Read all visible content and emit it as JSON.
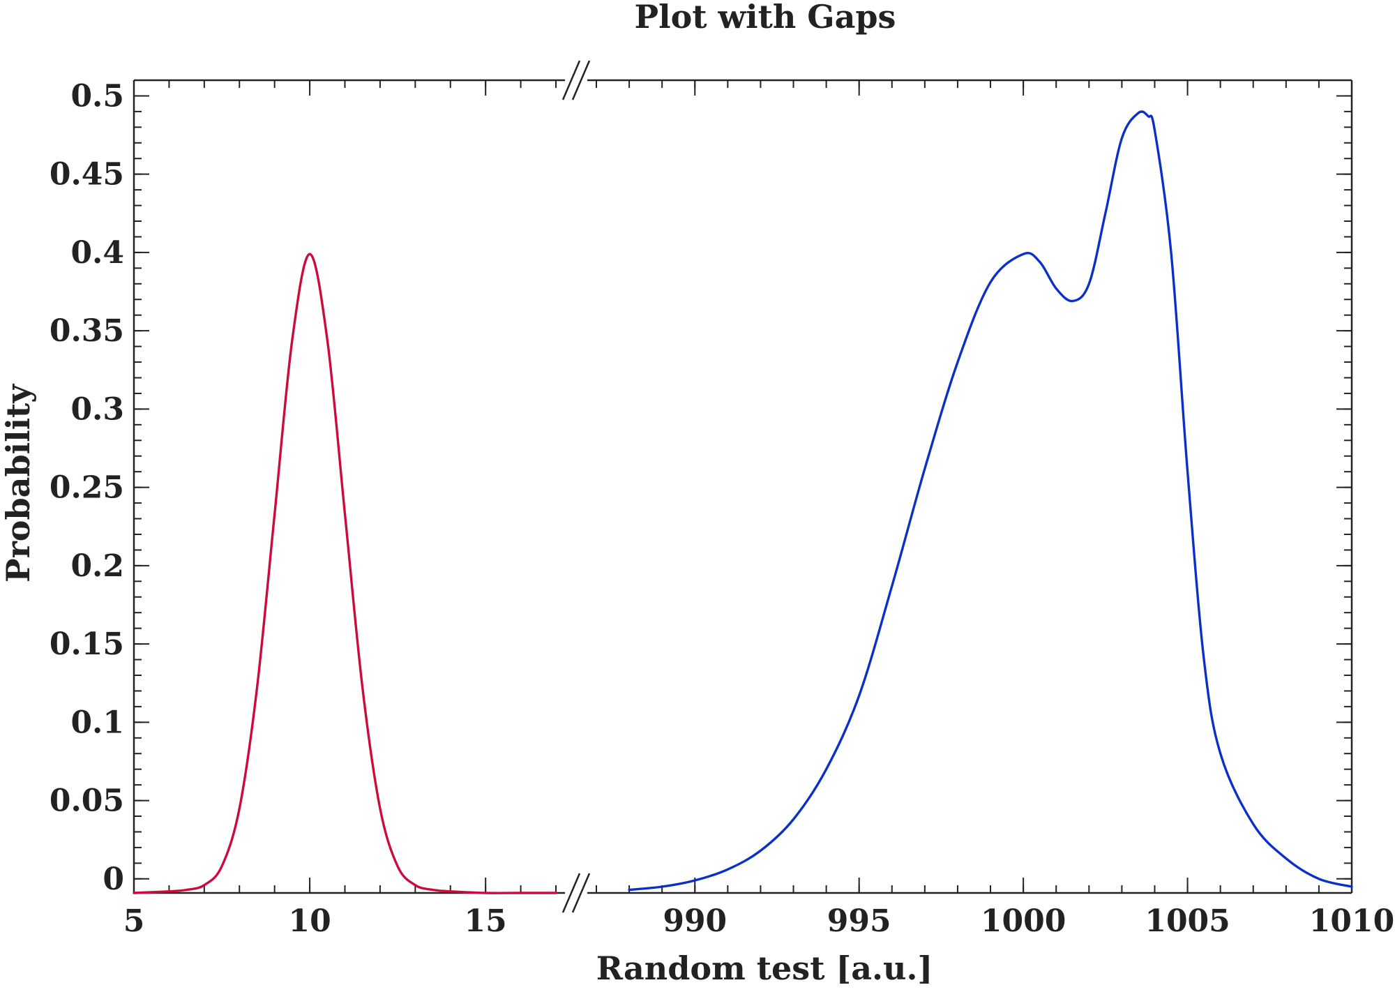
{
  "chart_data": {
    "type": "line",
    "title": "Plot with Gaps",
    "xlabel": "Random test [a.u.]",
    "ylabel": "Probability",
    "ylim": [
      -0.009,
      0.51
    ],
    "y_ticks": [
      {
        "value": 0,
        "label": "0"
      },
      {
        "value": 0.05,
        "label": "0.05"
      },
      {
        "value": 0.1,
        "label": "0.1"
      },
      {
        "value": 0.15,
        "label": "0.15"
      },
      {
        "value": 0.2,
        "label": "0.2"
      },
      {
        "value": 0.25,
        "label": "0.25"
      },
      {
        "value": 0.3,
        "label": "0.3"
      },
      {
        "value": 0.35,
        "label": "0.35"
      },
      {
        "value": 0.4,
        "label": "0.4"
      },
      {
        "value": 0.45,
        "label": "0.45"
      },
      {
        "value": 0.5,
        "label": "0.5"
      }
    ],
    "x_segments": [
      {
        "range": [
          5,
          17
        ],
        "ticks": [
          {
            "value": 5,
            "label": "5"
          },
          {
            "value": 10,
            "label": "10"
          },
          {
            "value": 15,
            "label": "15"
          }
        ]
      },
      {
        "range": [
          987,
          1010
        ],
        "ticks": [
          {
            "value": 990,
            "label": "990"
          },
          {
            "value": 995,
            "label": "995"
          },
          {
            "value": 1000,
            "label": "1000"
          },
          {
            "value": 1005,
            "label": "1005"
          },
          {
            "value": 1010,
            "label": "1010"
          }
        ]
      }
    ],
    "axis_break": "//",
    "grid": false,
    "series": [
      {
        "color": "#cc0a3c",
        "segment": 0,
        "x": [
          5,
          6,
          6.5,
          7,
          7.5,
          8,
          8.5,
          9,
          9.5,
          10,
          10.5,
          11,
          11.5,
          12,
          12.5,
          13,
          13.5,
          14,
          15,
          16,
          17
        ],
        "y": [
          -0.009,
          -0.008,
          -0.007,
          -0.004,
          0.008,
          0.045,
          0.122,
          0.233,
          0.344,
          0.399,
          0.344,
          0.233,
          0.122,
          0.045,
          0.008,
          -0.004,
          -0.007,
          -0.008,
          -0.009,
          -0.009,
          -0.009
        ]
      },
      {
        "color": "#0a30c8",
        "segment": 1,
        "x": [
          988,
          989,
          990,
          991,
          992,
          993,
          994,
          995,
          996,
          997,
          998,
          999,
          1000,
          1000.5,
          1001,
          1001.5,
          1002,
          1002.5,
          1003,
          1003.5,
          1003.8,
          1004,
          1004.5,
          1005,
          1005.5,
          1006,
          1007,
          1008,
          1009,
          1010
        ],
        "y": [
          -0.007,
          -0.005,
          -0.001,
          0.006,
          0.018,
          0.038,
          0.07,
          0.117,
          0.187,
          0.262,
          0.33,
          0.381,
          0.399,
          0.394,
          0.377,
          0.369,
          0.38,
          0.425,
          0.473,
          0.489,
          0.487,
          0.478,
          0.4,
          0.26,
          0.14,
          0.08,
          0.035,
          0.013,
          0.0,
          -0.005
        ]
      }
    ]
  }
}
